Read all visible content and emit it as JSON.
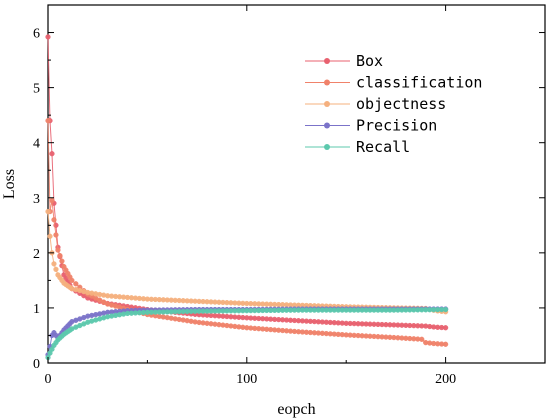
{
  "chart_data": {
    "type": "line",
    "xlabel": "eopch",
    "ylabel": "Loss",
    "xlim": [
      0,
      250
    ],
    "ylim": [
      0,
      6.5
    ],
    "xticks": [
      0,
      100,
      200
    ],
    "yticks": [
      0,
      1,
      2,
      3,
      4,
      5,
      6
    ],
    "legend_position": "top-right",
    "markers": "circle",
    "series": [
      {
        "name": "Box",
        "color": "#e8616f",
        "x": [
          0,
          1,
          2,
          3,
          5,
          8,
          12,
          20,
          30,
          50,
          75,
          100,
          125,
          150,
          175,
          190,
          195,
          200
        ],
        "values": [
          5.92,
          4.4,
          3.8,
          2.9,
          2.1,
          1.6,
          1.35,
          1.18,
          1.08,
          0.97,
          0.88,
          0.82,
          0.77,
          0.72,
          0.69,
          0.67,
          0.65,
          0.64
        ]
      },
      {
        "name": "classification",
        "color": "#f0826a",
        "x": [
          0,
          1,
          2,
          3,
          5,
          8,
          12,
          20,
          30,
          50,
          75,
          100,
          125,
          150,
          175,
          188,
          190,
          195,
          200
        ],
        "values": [
          4.4,
          2.75,
          2.95,
          2.6,
          2.05,
          1.75,
          1.5,
          1.25,
          1.07,
          0.88,
          0.74,
          0.64,
          0.57,
          0.51,
          0.46,
          0.43,
          0.37,
          0.35,
          0.34
        ]
      },
      {
        "name": "objectness",
        "color": "#f5b07e",
        "x": [
          0,
          1,
          2,
          3,
          5,
          8,
          12,
          20,
          30,
          50,
          75,
          100,
          125,
          150,
          175,
          190,
          195,
          200
        ],
        "values": [
          2.75,
          2.3,
          2.0,
          1.8,
          1.6,
          1.45,
          1.35,
          1.28,
          1.22,
          1.16,
          1.12,
          1.08,
          1.05,
          1.02,
          1.0,
          0.99,
          0.95,
          0.93
        ]
      },
      {
        "name": "Precision",
        "color": "#7b73c9",
        "x": [
          0,
          1,
          2,
          3,
          5,
          8,
          12,
          20,
          30,
          40,
          50,
          75,
          100,
          125,
          150,
          175,
          200
        ],
        "values": [
          0.15,
          0.3,
          0.5,
          0.55,
          0.45,
          0.6,
          0.75,
          0.85,
          0.92,
          0.95,
          0.96,
          0.97,
          0.97,
          0.98,
          0.98,
          0.98,
          0.98
        ]
      },
      {
        "name": "Recall",
        "color": "#5cc9ad",
        "x": [
          0,
          1,
          2,
          3,
          5,
          8,
          12,
          20,
          30,
          40,
          50,
          75,
          100,
          125,
          150,
          175,
          200
        ],
        "values": [
          0.1,
          0.18,
          0.25,
          0.32,
          0.42,
          0.52,
          0.62,
          0.74,
          0.84,
          0.9,
          0.92,
          0.94,
          0.95,
          0.96,
          0.96,
          0.96,
          0.97
        ]
      }
    ]
  }
}
